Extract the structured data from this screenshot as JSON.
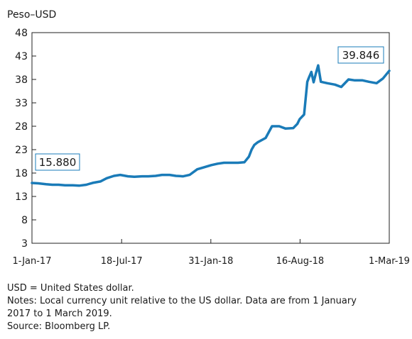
{
  "chart_data": {
    "type": "line",
    "ylabel": "Peso–USD",
    "ylim": [
      3,
      48
    ],
    "y_ticks": [
      3,
      8,
      13,
      18,
      23,
      28,
      33,
      38,
      43,
      48
    ],
    "x_ticks": [
      {
        "label": "1-Jan-17",
        "date": "2017-01-01"
      },
      {
        "label": "18-Jul-17",
        "date": "2017-07-18"
      },
      {
        "label": "31-Jan-18",
        "date": "2018-01-31"
      },
      {
        "label": "16-Aug-18",
        "date": "2018-08-16"
      },
      {
        "label": "1-Mar-19",
        "date": "2019-03-01"
      }
    ],
    "grid": false,
    "color": "#1a7bb8",
    "annotations": [
      {
        "text": "15.880",
        "date": "2017-01-01",
        "value": 15.88
      },
      {
        "text": "39.846",
        "date": "2019-03-01",
        "value": 39.846
      }
    ],
    "series": [
      {
        "x": [
          "2017-01-01",
          "2017-01-15",
          "2017-02-01",
          "2017-02-15",
          "2017-03-01",
          "2017-03-15",
          "2017-04-01",
          "2017-04-15",
          "2017-05-01",
          "2017-05-15",
          "2017-06-01",
          "2017-06-15",
          "2017-07-01",
          "2017-07-15",
          "2017-08-01",
          "2017-08-15",
          "2017-09-01",
          "2017-09-15",
          "2017-10-01",
          "2017-10-15",
          "2017-11-01",
          "2017-11-15",
          "2017-12-01",
          "2017-12-15",
          "2018-01-01",
          "2018-01-15",
          "2018-02-01",
          "2018-02-15",
          "2018-03-01",
          "2018-03-15",
          "2018-04-01",
          "2018-04-15",
          "2018-04-25",
          "2018-05-01",
          "2018-05-07",
          "2018-05-15",
          "2018-06-01",
          "2018-06-15",
          "2018-07-01",
          "2018-07-15",
          "2018-08-01",
          "2018-08-10",
          "2018-08-15",
          "2018-08-25",
          "2018-09-01",
          "2018-09-05",
          "2018-09-10",
          "2018-09-15",
          "2018-09-20",
          "2018-09-25",
          "2018-10-01",
          "2018-10-15",
          "2018-11-01",
          "2018-11-15",
          "2018-12-01",
          "2018-12-15",
          "2019-01-01",
          "2019-01-15",
          "2019-02-01",
          "2019-02-15",
          "2019-03-01"
        ],
        "values": [
          15.88,
          15.8,
          15.6,
          15.5,
          15.5,
          15.4,
          15.4,
          15.3,
          15.5,
          15.9,
          16.2,
          16.9,
          17.4,
          17.6,
          17.3,
          17.2,
          17.3,
          17.3,
          17.4,
          17.6,
          17.6,
          17.4,
          17.3,
          17.6,
          18.8,
          19.2,
          19.7,
          20.0,
          20.2,
          20.2,
          20.2,
          20.3,
          21.5,
          23.0,
          24.0,
          24.6,
          25.5,
          28.0,
          28.0,
          27.5,
          27.6,
          28.5,
          29.5,
          30.5,
          37.5,
          38.5,
          39.6,
          37.4,
          39.3,
          41.0,
          37.5,
          37.2,
          36.9,
          36.4,
          38.0,
          37.8,
          37.8,
          37.5,
          37.2,
          38.2,
          39.846
        ]
      }
    ]
  },
  "notes": {
    "line1": "USD = United States dollar.",
    "line2": "Notes: Local currency unit relative to the US dollar. Data are from 1 January",
    "line3": "2017 to 1 March 2019.",
    "line4": "Source: Bloomberg LP."
  }
}
